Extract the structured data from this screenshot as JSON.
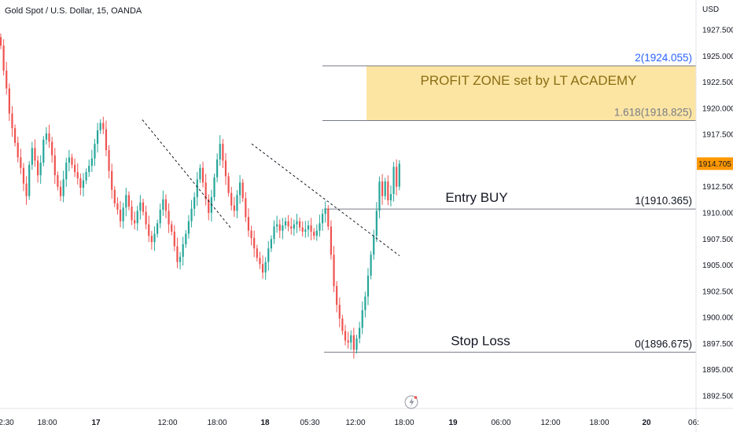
{
  "header": {
    "symbol_title": "Gold Spot / U.S. Dollar, 15, OANDA"
  },
  "price_axis": {
    "unit_label": "USD",
    "current_price": "1914.705",
    "current_price_color": "#ff9800"
  },
  "chart_data": {
    "type": "candlestick",
    "title": "Gold Spot / U.S. Dollar, 15, OANDA",
    "ylabel": "USD",
    "ylim": [
      1891.0,
      1929.0
    ],
    "y_ticks": [
      "1927.500",
      "1925.000",
      "1922.500",
      "1920.000",
      "1917.500",
      "1915.000",
      "1912.500",
      "1910.000",
      "1907.500",
      "1905.000",
      "1902.500",
      "1900.000",
      "1897.500",
      "1895.000",
      "1892.500"
    ],
    "x_ticks": [
      "2:30",
      "18:00",
      "17",
      "12:00",
      "18:00",
      "18",
      "05:30",
      "12:00",
      "18:00",
      "19",
      "06:00",
      "12:00",
      "18:00",
      "20",
      "06:"
    ],
    "x_ticks_bold": [
      "17",
      "18",
      "19",
      "20"
    ],
    "close_path": [
      1926.0,
      1923.6,
      1921.9,
      1919.5,
      1918.1,
      1916.7,
      1915.3,
      1914.3,
      1912.8,
      1911.6,
      1914.6,
      1916.2,
      1915.0,
      1913.6,
      1914.8,
      1917.0,
      1917.6,
      1916.8,
      1915.5,
      1913.6,
      1912.5,
      1911.6,
      1913.2,
      1914.8,
      1915.3,
      1914.6,
      1913.9,
      1913.3,
      1912.4,
      1913.1,
      1913.9,
      1914.5,
      1915.2,
      1916.6,
      1917.9,
      1918.6,
      1918.0,
      1916.0,
      1914.0,
      1912.2,
      1910.9,
      1910.3,
      1909.2,
      1910.5,
      1911.7,
      1910.6,
      1909.3,
      1909.0,
      1910.2,
      1911.0,
      1910.1,
      1908.9,
      1907.8,
      1907.2,
      1908.0,
      1909.0,
      1910.3,
      1911.3,
      1910.2,
      1908.9,
      1908.2,
      1906.8,
      1905.3,
      1905.8,
      1907.0,
      1908.0,
      1909.2,
      1910.4,
      1911.5,
      1913.2,
      1914.3,
      1912.9,
      1911.3,
      1910.0,
      1911.5,
      1913.4,
      1915.1,
      1916.6,
      1915.0,
      1913.5,
      1911.9,
      1910.7,
      1910.2,
      1911.7,
      1912.9,
      1911.4,
      1909.6,
      1908.3,
      1907.6,
      1906.6,
      1905.7,
      1905.1,
      1904.3,
      1905.3,
      1906.6,
      1907.5,
      1908.7,
      1908.9,
      1908.3,
      1908.8,
      1909.2,
      1908.7,
      1908.5,
      1908.9,
      1909.2,
      1908.6,
      1908.2,
      1908.4,
      1908.8,
      1908.2,
      1907.8,
      1908.3,
      1909.0,
      1909.9,
      1910.4,
      1908.7,
      1906.0,
      1903.0,
      1901.2,
      1899.9,
      1898.7,
      1897.8,
      1897.6,
      1898.3,
      1896.9,
      1898.0,
      1899.0,
      1900.7,
      1902.0,
      1904.0,
      1906.0,
      1907.8,
      1910.2,
      1913.0,
      1911.6,
      1913.0,
      1911.2,
      1911.8,
      1914.4,
      1912.5,
      1914.7
    ],
    "trendlines": [
      {
        "from": [
          181,
          1918.9
        ],
        "to": [
          294,
          1908.5
        ]
      },
      {
        "from": [
          320,
          1916.6
        ],
        "to": [
          508,
          1905.9
        ]
      }
    ],
    "levels": [
      {
        "ratio": "2",
        "price": 1924.055,
        "label": "2(1924.055)",
        "color": "#2962ff"
      },
      {
        "ratio": "1.618",
        "price": 1918.825,
        "label": "1.618(1918.825)",
        "color": "#787b86"
      },
      {
        "ratio": "1",
        "price": 1910.365,
        "label": "1(1910.365)",
        "color": "#131722"
      },
      {
        "ratio": "0",
        "price": 1896.675,
        "label": "0(1896.675)",
        "color": "#131722"
      }
    ],
    "zone": {
      "label": "PROFIT ZONE set by LT ACADEMY",
      "from": 1918.825,
      "to": 1924.055,
      "color": "#fce5a3"
    },
    "annotations": {
      "entry": "Entry BUY",
      "stop": "Stop Loss"
    }
  },
  "colors": {
    "up": "#26a69a",
    "down": "#ef5350",
    "zone_text": "#8a6d12",
    "level_line": "#787b86"
  }
}
